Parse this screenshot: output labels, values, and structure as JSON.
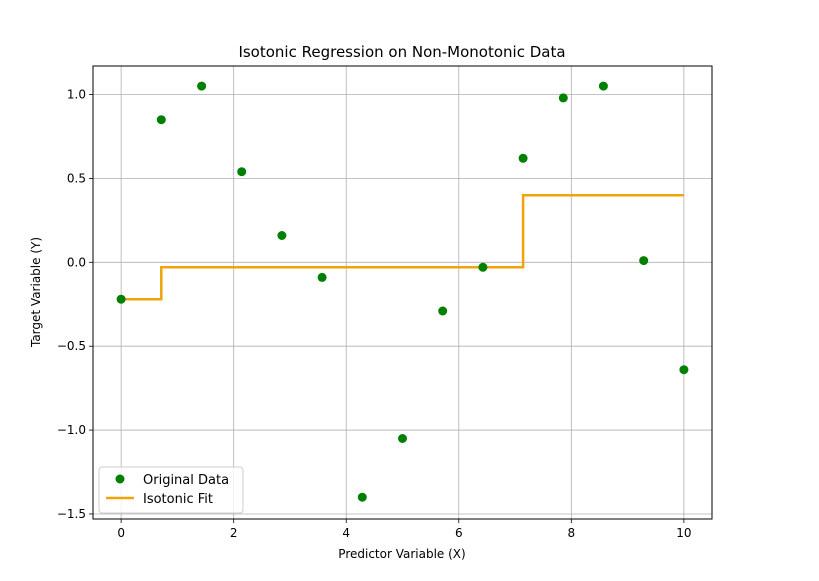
{
  "chart_data": {
    "type": "scatter",
    "title": "Isotonic Regression on Non-Monotonic Data",
    "xlabel": "Predictor Variable (X)",
    "ylabel": "Target Variable (Y)",
    "xlim": [
      -0.5,
      10.5
    ],
    "ylim": [
      -1.53,
      1.17
    ],
    "xticks": [
      0,
      2,
      4,
      6,
      8,
      10
    ],
    "xtick_labels": [
      "0",
      "2",
      "4",
      "6",
      "8",
      "10"
    ],
    "yticks": [
      1.0,
      0.5,
      0.0,
      -0.5,
      -1.0,
      -1.5
    ],
    "ytick_labels": [
      "1.0",
      "0.5",
      "0.0",
      "−0.5",
      "−1.0",
      "−1.5"
    ],
    "grid": true,
    "legend_position": "lower-left",
    "series": [
      {
        "name": "Original Data",
        "kind": "scatter",
        "color": "#008000",
        "x": [
          0,
          0.714,
          1.429,
          2.143,
          2.857,
          3.571,
          4.286,
          5.0,
          5.714,
          6.429,
          7.143,
          7.857,
          8.571,
          9.286,
          10.0
        ],
        "y": [
          -0.22,
          0.85,
          1.05,
          0.54,
          0.16,
          -0.09,
          -1.4,
          -1.05,
          -0.29,
          -0.03,
          0.62,
          0.98,
          1.05,
          0.01,
          -0.64
        ]
      },
      {
        "name": "Isotonic Fit",
        "kind": "step-line",
        "color": "#f0a30a",
        "x": [
          0,
          0.714,
          0.714,
          7.143,
          7.143,
          10.0
        ],
        "y": [
          -0.22,
          -0.22,
          -0.03,
          -0.03,
          0.4,
          0.4
        ]
      }
    ]
  }
}
